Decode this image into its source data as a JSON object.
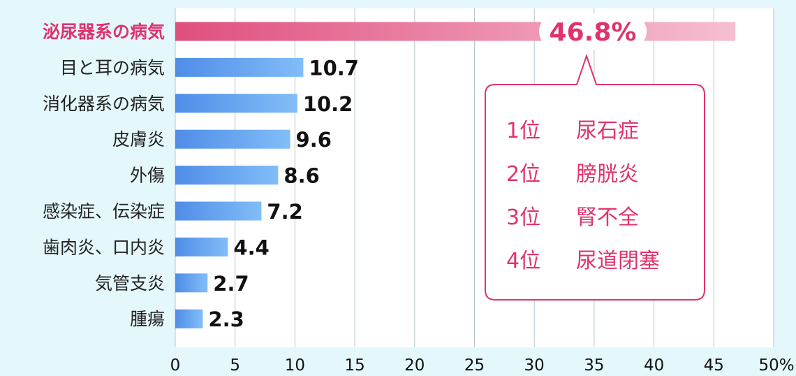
{
  "chart_data": {
    "type": "bar",
    "orientation": "horizontal",
    "categories": [
      "泌尿器系の病気",
      "目と耳の病気",
      "消化器系の病気",
      "皮膚炎",
      "外傷",
      "感染症、伝染症",
      "歯肉炎、口内炎",
      "気管支炎",
      "腫瘍"
    ],
    "values": [
      46.8,
      10.7,
      10.2,
      9.6,
      8.6,
      7.2,
      4.4,
      2.7,
      2.3
    ],
    "value_labels": [
      "46.8%",
      "10.7",
      "10.2",
      "9.6",
      "8.6",
      "7.2",
      "4.4",
      "2.7",
      "2.3"
    ],
    "highlight_index": 0,
    "xlim": [
      0,
      50
    ],
    "xticks": [
      0,
      5,
      10,
      15,
      20,
      25,
      30,
      35,
      40,
      45,
      50
    ],
    "xtick_labels": [
      "0",
      "5",
      "10",
      "15",
      "20",
      "25",
      "30",
      "35",
      "40",
      "45",
      "50%"
    ],
    "grid": "vertical",
    "colors": {
      "highlight_start": "#df4f7e",
      "highlight_end": "#f6bfd1",
      "bar_start": "#4f8de8",
      "bar_end": "#82bdf8",
      "accent": "#e0336e",
      "grid": "#b5c4cc",
      "plot_bg": "#ffffff",
      "page_bg": "#e4f8fc"
    },
    "callout": {
      "items": [
        {
          "rank": "1位",
          "name": "尿石症"
        },
        {
          "rank": "2位",
          "name": "膀胱炎"
        },
        {
          "rank": "3位",
          "name": "腎不全"
        },
        {
          "rank": "4位",
          "name": "尿道閉塞"
        }
      ]
    }
  }
}
